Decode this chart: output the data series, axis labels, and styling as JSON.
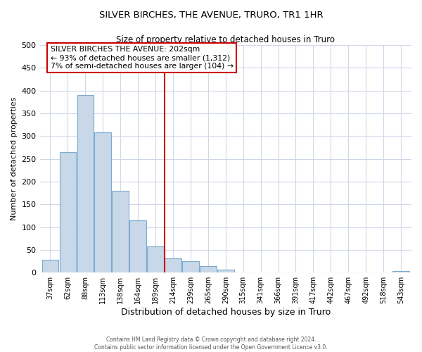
{
  "title": "SILVER BIRCHES, THE AVENUE, TRURO, TR1 1HR",
  "subtitle": "Size of property relative to detached houses in Truro",
  "xlabel": "Distribution of detached houses by size in Truro",
  "ylabel": "Number of detached properties",
  "bar_labels": [
    "37sqm",
    "62sqm",
    "88sqm",
    "113sqm",
    "138sqm",
    "164sqm",
    "189sqm",
    "214sqm",
    "239sqm",
    "265sqm",
    "290sqm",
    "315sqm",
    "341sqm",
    "366sqm",
    "391sqm",
    "417sqm",
    "442sqm",
    "467sqm",
    "492sqm",
    "518sqm",
    "543sqm"
  ],
  "bar_values": [
    28,
    265,
    390,
    308,
    180,
    115,
    58,
    32,
    25,
    14,
    6,
    0,
    0,
    0,
    0,
    0,
    0,
    0,
    0,
    0,
    3
  ],
  "bar_color": "#c8d8e8",
  "bar_edge_color": "#7baad0",
  "vline_x": 6.5,
  "vline_color": "#cc0000",
  "annotation_text": "SILVER BIRCHES THE AVENUE: 202sqm\n← 93% of detached houses are smaller (1,312)\n7% of semi-detached houses are larger (104) →",
  "annotation_box_color": "#ffffff",
  "annotation_box_edge_color": "#cc0000",
  "ylim": [
    0,
    500
  ],
  "footer_line1": "Contains HM Land Registry data © Crown copyright and database right 2024.",
  "footer_line2": "Contains public sector information licensed under the Open Government Licence v3.0.",
  "bg_color": "#ffffff",
  "grid_color": "#d0d8e8"
}
